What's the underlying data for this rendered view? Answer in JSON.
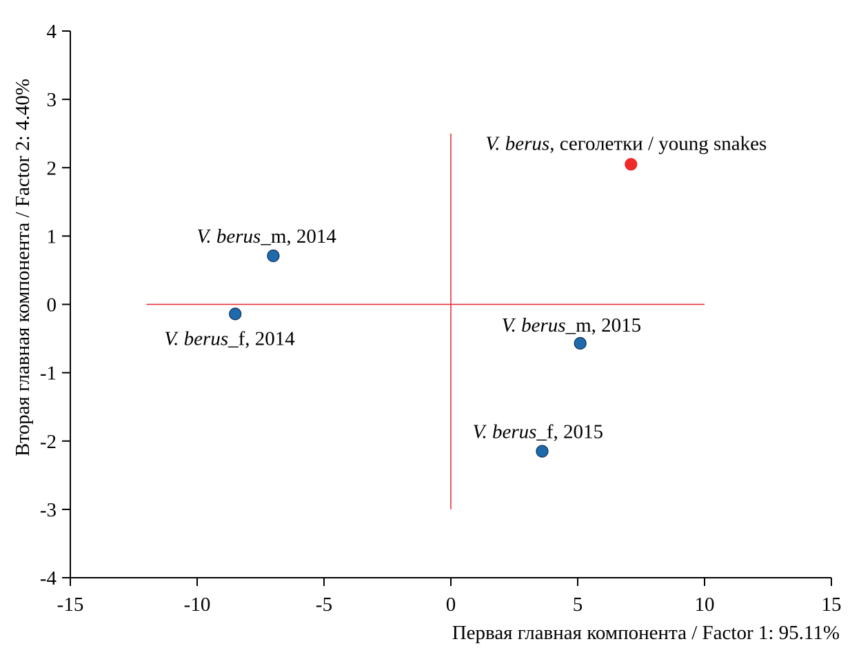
{
  "chart_data": {
    "type": "scatter",
    "title": "",
    "xlabel": "Первая главная компонента / Factor 1: 95.11%",
    "ylabel": "Вторая главная компонента / Factor 2: 4.40%",
    "xlim": [
      -15,
      15
    ],
    "ylim": [
      -4,
      4
    ],
    "xticks": [
      -15,
      -10,
      -5,
      0,
      5,
      10,
      15
    ],
    "yticks": [
      -4,
      -3,
      -2,
      -1,
      0,
      1,
      2,
      3,
      4
    ],
    "grid": false,
    "reference_lines": {
      "horizontal": {
        "y": 0,
        "x_from": -12,
        "x_to": 10,
        "color": "#e8262a"
      },
      "vertical": {
        "x": 0,
        "y_from": -3,
        "y_to": 2.5,
        "color": "#e8262a"
      }
    },
    "points": [
      {
        "species": "V. berus",
        "suffix": ", сеголетки / young snakes",
        "x": 7.1,
        "y": 2.05,
        "color": "#ee2a2a"
      },
      {
        "species": "V. berus",
        "suffix": "_m, 2014",
        "x": -7.0,
        "y": 0.71,
        "color": "#1f6aad"
      },
      {
        "species": "V. berus",
        "suffix": "_f, 2014",
        "x": -8.5,
        "y": -0.14,
        "color": "#1f6aad"
      },
      {
        "species": "V. berus",
        "suffix": "_m, 2015",
        "x": 5.1,
        "y": -0.57,
        "color": "#1f6aad"
      },
      {
        "species": "V. berus",
        "suffix": "_f, 2015",
        "x": 3.6,
        "y": -2.15,
        "color": "#1f6aad"
      }
    ]
  }
}
